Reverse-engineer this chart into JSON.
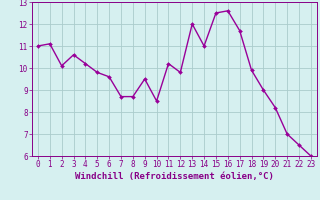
{
  "x": [
    0,
    1,
    2,
    3,
    4,
    5,
    6,
    7,
    8,
    9,
    10,
    11,
    12,
    13,
    14,
    15,
    16,
    17,
    18,
    19,
    20,
    21,
    22,
    23
  ],
  "y": [
    11.0,
    11.1,
    10.1,
    10.6,
    10.2,
    9.8,
    9.6,
    8.7,
    8.7,
    9.5,
    8.5,
    10.2,
    9.8,
    12.0,
    11.0,
    12.5,
    12.6,
    11.7,
    9.9,
    9.0,
    8.2,
    7.0,
    6.5,
    6.0
  ],
  "line_color": "#990099",
  "marker": "D",
  "marker_size": 2.0,
  "bg_color": "#d6f0f0",
  "grid_color": "#aacccc",
  "xlabel": "Windchill (Refroidissement éolien,°C)",
  "xlim": [
    -0.5,
    23.5
  ],
  "ylim": [
    6,
    13
  ],
  "yticks": [
    6,
    7,
    8,
    9,
    10,
    11,
    12,
    13
  ],
  "xticks": [
    0,
    1,
    2,
    3,
    4,
    5,
    6,
    7,
    8,
    9,
    10,
    11,
    12,
    13,
    14,
    15,
    16,
    17,
    18,
    19,
    20,
    21,
    22,
    23
  ],
  "tick_label_size": 5.5,
  "xlabel_size": 6.5,
  "line_width": 1.0,
  "spine_color": "#880088"
}
